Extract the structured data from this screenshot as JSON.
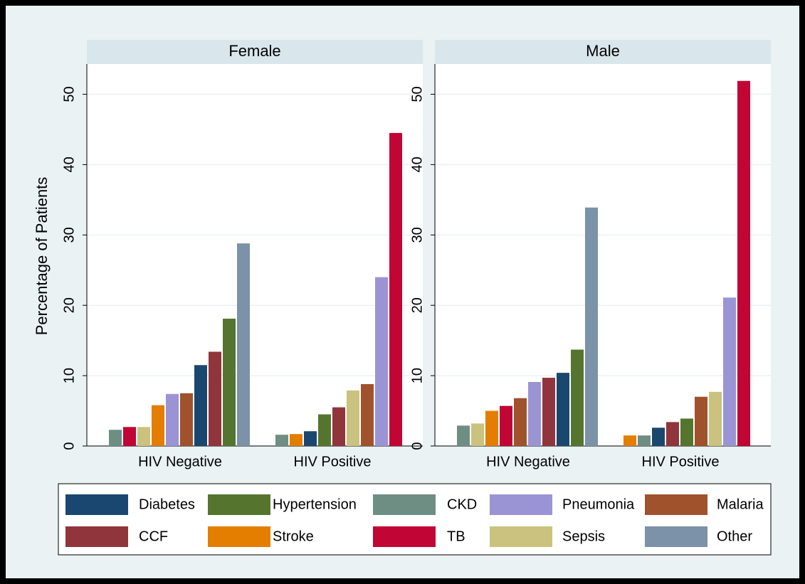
{
  "chart_data": {
    "type": "bar",
    "ylabel": "Percentage of Patients",
    "ylim": [
      0,
      54.3
    ],
    "yticks": [
      0,
      10,
      20,
      30,
      40,
      50
    ],
    "grid": true,
    "series": [
      {
        "name": "Diabetes",
        "color": "#1a476f"
      },
      {
        "name": "Hypertension",
        "color": "#55752f"
      },
      {
        "name": "CKD",
        "color": "#6e8e84"
      },
      {
        "name": "Pneumonia",
        "color": "#9b94d4"
      },
      {
        "name": "Malaria",
        "color": "#a0522d"
      },
      {
        "name": "CCF",
        "color": "#90353b"
      },
      {
        "name": "Stroke",
        "color": "#e37e00"
      },
      {
        "name": "TB",
        "color": "#c10534"
      },
      {
        "name": "Sepsis",
        "color": "#cac27e"
      },
      {
        "name": "Other",
        "color": "#7b92a8"
      }
    ],
    "panels": [
      {
        "title": "Female",
        "groups": [
          {
            "category": "HIV Negative",
            "bars": [
              {
                "name": "CKD",
                "value": 2.3
              },
              {
                "name": "TB",
                "value": 2.7
              },
              {
                "name": "Sepsis",
                "value": 2.7
              },
              {
                "name": "Stroke",
                "value": 5.8
              },
              {
                "name": "Pneumonia",
                "value": 7.4
              },
              {
                "name": "Malaria",
                "value": 7.5
              },
              {
                "name": "Diabetes",
                "value": 11.5
              },
              {
                "name": "CCF",
                "value": 13.4
              },
              {
                "name": "Hypertension",
                "value": 18.1
              },
              {
                "name": "Other",
                "value": 28.8
              }
            ]
          },
          {
            "category": "HIV Positive",
            "bars": [
              {
                "name": "CKD",
                "value": 1.6
              },
              {
                "name": "Stroke",
                "value": 1.7
              },
              {
                "name": "Diabetes",
                "value": 2.1
              },
              {
                "name": "Hypertension",
                "value": 4.5
              },
              {
                "name": "CCF",
                "value": 5.5
              },
              {
                "name": "Sepsis",
                "value": 7.9
              },
              {
                "name": "Malaria",
                "value": 8.8
              },
              {
                "name": "Pneumonia",
                "value": 24.0
              },
              {
                "name": "TB",
                "value": 44.5
              }
            ]
          }
        ]
      },
      {
        "title": "Male",
        "groups": [
          {
            "category": "HIV Negative",
            "bars": [
              {
                "name": "CKD",
                "value": 2.9
              },
              {
                "name": "Sepsis",
                "value": 3.2
              },
              {
                "name": "Stroke",
                "value": 5.0
              },
              {
                "name": "TB",
                "value": 5.7
              },
              {
                "name": "Malaria",
                "value": 6.8
              },
              {
                "name": "Pneumonia",
                "value": 9.1
              },
              {
                "name": "CCF",
                "value": 9.7
              },
              {
                "name": "Diabetes",
                "value": 10.4
              },
              {
                "name": "Hypertension",
                "value": 13.7
              },
              {
                "name": "Other",
                "value": 33.9
              }
            ]
          },
          {
            "category": "HIV Positive",
            "bars": [
              {
                "name": "Stroke",
                "value": 1.5
              },
              {
                "name": "CKD",
                "value": 1.5
              },
              {
                "name": "Diabetes",
                "value": 2.6
              },
              {
                "name": "CCF",
                "value": 3.4
              },
              {
                "name": "Hypertension",
                "value": 3.9
              },
              {
                "name": "Malaria",
                "value": 7.0
              },
              {
                "name": "Sepsis",
                "value": 7.7
              },
              {
                "name": "Pneumonia",
                "value": 21.1
              },
              {
                "name": "TB",
                "value": 51.9
              }
            ]
          }
        ]
      }
    ]
  }
}
